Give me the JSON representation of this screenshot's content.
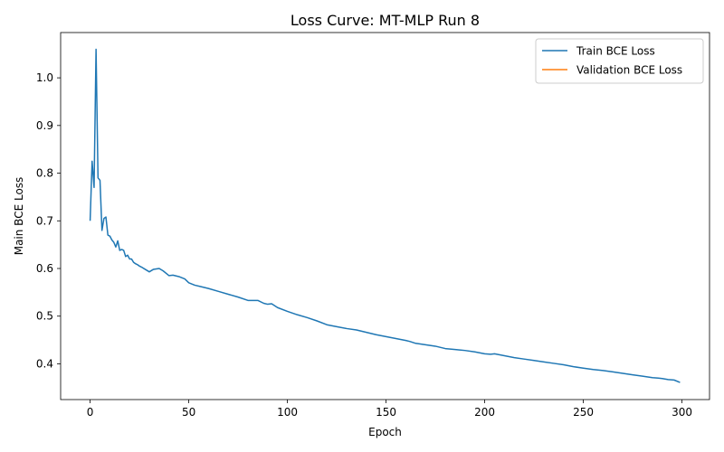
{
  "chart_data": {
    "type": "line",
    "title": "Loss Curve: MT-MLP Run 8",
    "xlabel": "Epoch",
    "ylabel": "Main BCE Loss",
    "xlim": [
      -14.95,
      313.95
    ],
    "ylim": [
      0.325,
      1.095
    ],
    "xticks": [
      0,
      50,
      100,
      150,
      200,
      250,
      300
    ],
    "yticks": [
      0.4,
      0.5,
      0.6,
      0.7,
      0.8,
      0.9,
      1.0
    ],
    "grid": false,
    "legend": {
      "position": "top-right",
      "entries": [
        "Train BCE Loss",
        "Validation BCE Loss"
      ]
    },
    "series": [
      {
        "name": "Train BCE Loss",
        "color": "#1f77b4",
        "x": [
          0,
          1,
          2,
          3,
          4,
          5,
          6,
          7,
          8,
          9,
          10,
          11,
          12,
          13,
          14,
          15,
          16,
          17,
          18,
          19,
          20,
          21,
          22,
          23,
          24,
          25,
          26,
          28,
          30,
          32,
          35,
          37,
          40,
          42,
          45,
          48,
          50,
          53,
          56,
          60,
          65,
          70,
          75,
          80,
          85,
          88,
          90,
          92,
          95,
          100,
          105,
          110,
          115,
          120,
          125,
          130,
          135,
          140,
          145,
          150,
          155,
          160,
          162,
          165,
          170,
          175,
          180,
          185,
          190,
          195,
          200,
          203,
          205,
          210,
          215,
          220,
          225,
          230,
          235,
          240,
          245,
          250,
          255,
          260,
          265,
          270,
          275,
          280,
          285,
          288,
          290,
          293,
          296,
          299
        ],
        "values": [
          0.7,
          0.825,
          0.77,
          1.06,
          0.79,
          0.785,
          0.68,
          0.705,
          0.708,
          0.67,
          0.668,
          0.66,
          0.655,
          0.645,
          0.658,
          0.638,
          0.64,
          0.638,
          0.625,
          0.628,
          0.62,
          0.62,
          0.613,
          0.61,
          0.608,
          0.605,
          0.603,
          0.598,
          0.593,
          0.598,
          0.6,
          0.595,
          0.585,
          0.586,
          0.583,
          0.578,
          0.57,
          0.565,
          0.562,
          0.558,
          0.552,
          0.546,
          0.54,
          0.533,
          0.533,
          0.527,
          0.525,
          0.526,
          0.518,
          0.51,
          0.503,
          0.497,
          0.49,
          0.482,
          0.478,
          0.474,
          0.471,
          0.466,
          0.461,
          0.457,
          0.453,
          0.449,
          0.447,
          0.443,
          0.44,
          0.437,
          0.432,
          0.43,
          0.428,
          0.425,
          0.421,
          0.42,
          0.421,
          0.417,
          0.413,
          0.41,
          0.407,
          0.404,
          0.401,
          0.398,
          0.394,
          0.391,
          0.388,
          0.386,
          0.383,
          0.38,
          0.377,
          0.374,
          0.371,
          0.37,
          0.369,
          0.367,
          0.366,
          0.361
        ]
      },
      {
        "name": "Validation BCE Loss",
        "color": "#ff7f0e",
        "x": [],
        "values": []
      }
    ]
  }
}
